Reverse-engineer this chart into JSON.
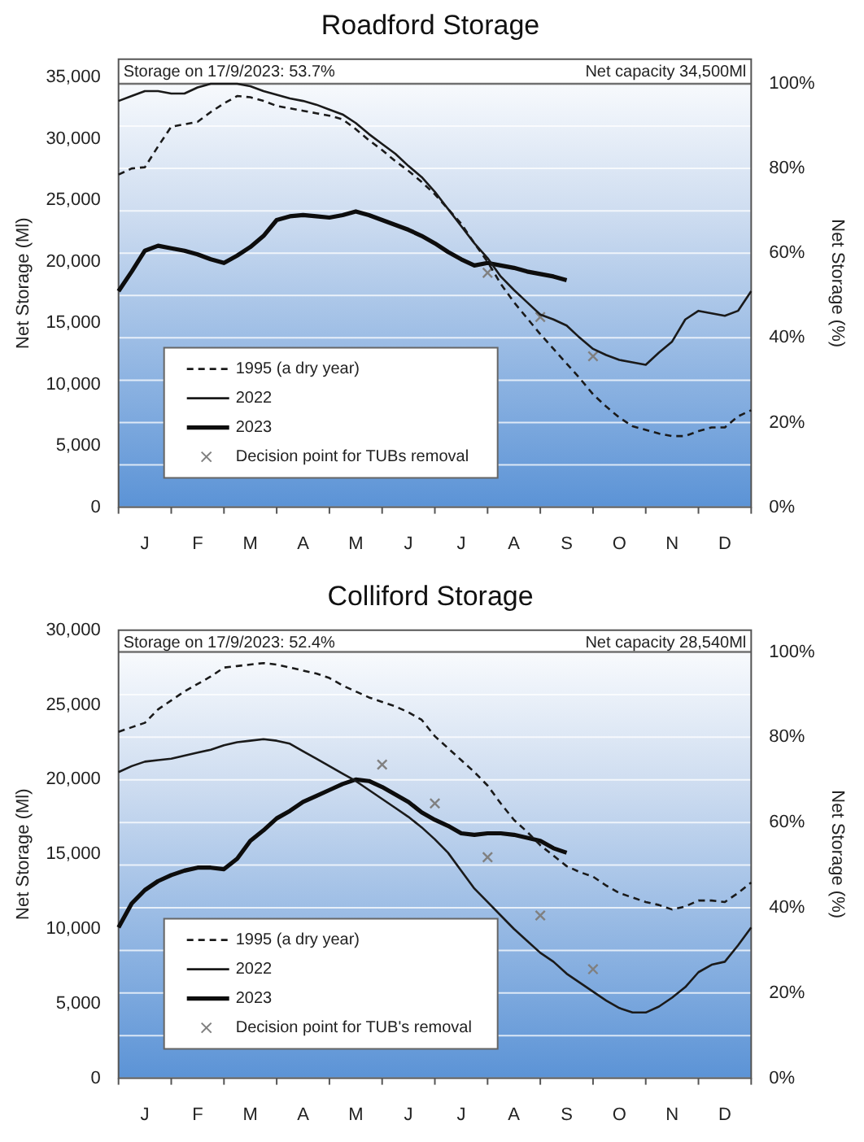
{
  "chart_data": [
    {
      "type": "line",
      "title": "Roadford Storage",
      "ylabel": "Net Storage (Ml)",
      "y2label": "Net Storage (%)",
      "annotations": [
        "Storage on 17/9/2023: 53.7%",
        "Net capacity 34,500Ml"
      ],
      "categories": [
        null,
        null,
        "J",
        null,
        null,
        null,
        "F",
        null,
        null,
        null,
        "M",
        null,
        null,
        null,
        "A",
        null,
        null,
        null,
        "M",
        null,
        null,
        null,
        "J",
        null,
        null,
        null,
        "J",
        null,
        null,
        null,
        "A",
        null,
        null,
        null,
        "S",
        null,
        null,
        null,
        "O",
        null,
        null,
        null,
        "N",
        null,
        null,
        null,
        "D",
        null,
        null
      ],
      "ylim": [
        0,
        36500
      ],
      "yticks": [
        {
          "value": 0,
          "label": "0"
        },
        {
          "value": 5000,
          "label": "5,000"
        },
        {
          "value": 10000,
          "label": "10,000"
        },
        {
          "value": 15000,
          "label": "15,000"
        },
        {
          "value": 20000,
          "label": "20,000"
        },
        {
          "value": 25000,
          "label": "25,000"
        },
        {
          "value": 30000,
          "label": "30,000"
        },
        {
          "value": 35000,
          "label": "35,000"
        }
      ],
      "y2lim": [
        0,
        105.8
      ],
      "y2ticks": [
        {
          "value": 0,
          "label": "0%"
        },
        {
          "value": 10,
          "label": null
        },
        {
          "value": 20,
          "label": "20%"
        },
        {
          "value": 30,
          "label": null
        },
        {
          "value": 40,
          "label": "40%"
        },
        {
          "value": 50,
          "label": null
        },
        {
          "value": 60,
          "label": "60%"
        },
        {
          "value": 70,
          "label": null
        },
        {
          "value": 80,
          "label": "80%"
        },
        {
          "value": 90,
          "label": null
        },
        {
          "value": 100,
          "label": "100%"
        }
      ],
      "grid": "y2",
      "legend": "bottom left",
      "ref_lines": [
        {
          "axis": "y2",
          "value": 100,
          "color": "#707070"
        }
      ],
      "series": [
        {
          "name": "1995 (a dry year)",
          "color": "#1a1a1a",
          "line_style": "dashed",
          "marker": "none",
          "values": [
            27100,
            27600,
            27700,
            29400,
            31000,
            31200,
            31400,
            32200,
            32900,
            33500,
            33400,
            33100,
            32700,
            32500,
            32300,
            32100,
            31900,
            31600,
            30800,
            29900,
            29100,
            28200,
            27400,
            26500,
            25500,
            24300,
            23100,
            21500,
            20000,
            18200,
            16700,
            15400,
            14100,
            12900,
            11700,
            10500,
            9200,
            8200,
            7300,
            6600,
            6300,
            6000,
            5800,
            5800,
            6200,
            6500,
            6500,
            7400,
            7900
          ]
        },
        {
          "name": "2022",
          "color": "#1a1a1a",
          "line_style": "solid",
          "marker": "none",
          "values": [
            33100,
            33500,
            33900,
            33900,
            33700,
            33700,
            34200,
            34500,
            34500,
            34500,
            34300,
            33900,
            33600,
            33300,
            33100,
            32800,
            32400,
            32000,
            31300,
            30400,
            29600,
            28800,
            27800,
            26900,
            25700,
            24300,
            22900,
            21500,
            20300,
            18800,
            17700,
            16700,
            15700,
            15300,
            14800,
            13800,
            12900,
            12400,
            12000,
            11800,
            11600,
            12600,
            13500,
            15300,
            16000,
            15800,
            15600,
            16000,
            17600
          ]
        },
        {
          "name": "2023",
          "color": "#0d0d0d",
          "line_style": "solid",
          "marker": "none",
          "values": [
            17600,
            19200,
            20900,
            21300,
            21100,
            20900,
            20600,
            20200,
            19900,
            20500,
            21200,
            22100,
            23400,
            23700,
            23800,
            23700,
            23600,
            23800,
            24100,
            23800,
            23400,
            23000,
            22600,
            22100,
            21500,
            20800,
            20200,
            19700,
            19900,
            19700,
            19500,
            19200,
            19000,
            18800,
            18500,
            null,
            null,
            null,
            null,
            null,
            null,
            null,
            null,
            null,
            null,
            null,
            null,
            null,
            null
          ]
        },
        {
          "name": "Decision point for TUBs removal",
          "type": "scatter",
          "color": "#808080",
          "marker": "cross",
          "values": [
            null,
            null,
            null,
            null,
            null,
            null,
            null,
            null,
            null,
            null,
            null,
            null,
            null,
            null,
            null,
            null,
            null,
            null,
            null,
            null,
            null,
            null,
            null,
            null,
            null,
            null,
            null,
            null,
            19100,
            null,
            null,
            null,
            15500,
            null,
            null,
            null,
            12300,
            null,
            null,
            null,
            null,
            null,
            null,
            null,
            null,
            null,
            null,
            null,
            null
          ]
        }
      ]
    },
    {
      "type": "line",
      "title": "Colliford Storage",
      "ylabel": "Net Storage (Ml)",
      "y2label": "Net Storage (%)",
      "annotations": [
        "Storage on 17/9/2023: 52.4%",
        "Net capacity 28,540Ml"
      ],
      "categories": [
        null,
        null,
        "J",
        null,
        null,
        null,
        "F",
        null,
        null,
        null,
        "M",
        null,
        null,
        null,
        "A",
        null,
        null,
        null,
        "M",
        null,
        null,
        null,
        "J",
        null,
        null,
        null,
        "J",
        null,
        null,
        null,
        "A",
        null,
        null,
        null,
        "S",
        null,
        null,
        null,
        "O",
        null,
        null,
        null,
        "N",
        null,
        null,
        null,
        "D",
        null,
        null
      ],
      "ylim": [
        0,
        30000
      ],
      "yticks": [
        {
          "value": 0,
          "label": "0"
        },
        {
          "value": 5000,
          "label": "5,000"
        },
        {
          "value": 10000,
          "label": "10,000"
        },
        {
          "value": 15000,
          "label": "15,000"
        },
        {
          "value": 20000,
          "label": "20,000"
        },
        {
          "value": 25000,
          "label": "25,000"
        },
        {
          "value": 30000,
          "label": "30,000"
        }
      ],
      "y2lim": [
        0,
        105.1
      ],
      "y2ticks": [
        {
          "value": 0,
          "label": "0%"
        },
        {
          "value": 10,
          "label": null
        },
        {
          "value": 20,
          "label": "20%"
        },
        {
          "value": 30,
          "label": null
        },
        {
          "value": 40,
          "label": "40%"
        },
        {
          "value": 50,
          "label": null
        },
        {
          "value": 60,
          "label": "60%"
        },
        {
          "value": 70,
          "label": null
        },
        {
          "value": 80,
          "label": "80%"
        },
        {
          "value": 90,
          "label": null
        },
        {
          "value": 100,
          "label": "100%"
        }
      ],
      "grid": "y2",
      "legend": "bottom left",
      "ref_lines": [
        {
          "axis": "y2",
          "value": 100,
          "color": "#707070"
        }
      ],
      "series": [
        {
          "name": "1995 (a dry year)",
          "color": "#1a1a1a",
          "line_style": "dashed",
          "marker": "none",
          "values": [
            23200,
            23500,
            23800,
            24700,
            25300,
            25900,
            26400,
            26900,
            27500,
            27600,
            27700,
            27800,
            27700,
            27500,
            27300,
            27100,
            26800,
            26300,
            25900,
            25500,
            25200,
            24900,
            24500,
            24000,
            22900,
            22100,
            21300,
            20500,
            19600,
            18400,
            17300,
            16500,
            15600,
            14900,
            14200,
            13800,
            13500,
            12900,
            12400,
            12100,
            11800,
            11600,
            11300,
            11500,
            11900,
            11900,
            11800,
            12400,
            13100
          ]
        },
        {
          "name": "2022",
          "color": "#1a1a1a",
          "line_style": "solid",
          "marker": "none",
          "values": [
            20500,
            20900,
            21200,
            21300,
            21400,
            21600,
            21800,
            22000,
            22300,
            22500,
            22600,
            22700,
            22600,
            22400,
            21900,
            21400,
            20900,
            20400,
            19900,
            19300,
            18700,
            18100,
            17500,
            16800,
            16000,
            15100,
            13900,
            12700,
            11800,
            10900,
            10000,
            9200,
            8400,
            7800,
            7000,
            6400,
            5800,
            5200,
            4700,
            4400,
            4400,
            4800,
            5400,
            6100,
            7100,
            7600,
            7800,
            8900,
            10100
          ]
        },
        {
          "name": "2023",
          "color": "#0d0d0d",
          "line_style": "solid",
          "marker": "none",
          "values": [
            10100,
            11700,
            12600,
            13200,
            13600,
            13900,
            14100,
            14100,
            14000,
            14700,
            15900,
            16600,
            17400,
            17900,
            18500,
            18900,
            19300,
            19700,
            20000,
            19900,
            19500,
            19000,
            18500,
            17800,
            17300,
            16900,
            16400,
            16300,
            16400,
            16400,
            16300,
            16100,
            15900,
            15400,
            15100,
            null,
            null,
            null,
            null,
            null,
            null,
            null,
            null,
            null,
            null,
            null,
            null,
            null,
            null
          ]
        },
        {
          "name": "Decision point for TUB's removal",
          "type": "scatter",
          "color": "#808080",
          "marker": "cross",
          "values": [
            null,
            null,
            null,
            null,
            null,
            null,
            null,
            null,
            null,
            null,
            null,
            null,
            null,
            null,
            null,
            null,
            null,
            null,
            null,
            null,
            21000,
            null,
            null,
            null,
            18400,
            null,
            null,
            null,
            14800,
            null,
            null,
            null,
            10900,
            null,
            null,
            null,
            7300,
            null,
            null,
            null,
            null,
            null,
            null,
            null,
            null,
            null,
            null,
            null,
            null
          ]
        }
      ]
    }
  ]
}
